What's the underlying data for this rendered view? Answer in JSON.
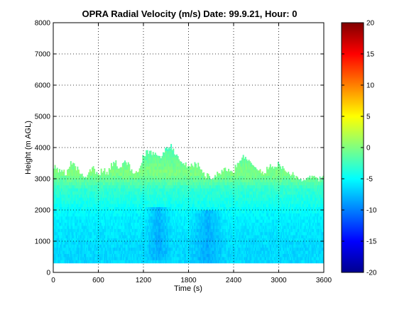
{
  "chart_data": {
    "type": "heatmap",
    "title": "OPRA Radial Velocity (m/s)  Date: 99.9.21, Hour: 0",
    "xlabel": "Time (s)",
    "ylabel": "Height (m AGL)",
    "xlim": [
      0,
      3600
    ],
    "ylim": [
      0,
      8000
    ],
    "x_ticks": [
      "0",
      "600",
      "1200",
      "1800",
      "2400",
      "3000",
      "3600"
    ],
    "y_ticks": [
      "0",
      "1000",
      "2000",
      "3000",
      "4000",
      "5000",
      "6000",
      "7000",
      "8000"
    ],
    "grid": true,
    "colormap": "jet",
    "colorbar": {
      "range": [
        -20,
        20
      ],
      "ticks": [
        "20",
        "15",
        "10",
        "5",
        "0",
        "-5",
        "-10",
        "-15",
        "-20"
      ]
    },
    "data_bottom_height": 300,
    "top_height_profile": {
      "time": [
        0,
        60,
        120,
        180,
        240,
        300,
        360,
        420,
        480,
        540,
        600,
        660,
        720,
        780,
        840,
        900,
        960,
        1020,
        1080,
        1140,
        1200,
        1260,
        1320,
        1380,
        1440,
        1500,
        1560,
        1620,
        1680,
        1740,
        1800,
        1860,
        1920,
        1980,
        2040,
        2100,
        2160,
        2220,
        2280,
        2340,
        2400,
        2460,
        2520,
        2580,
        2640,
        2700,
        2760,
        2820,
        2880,
        2940,
        3000,
        3060,
        3120,
        3180,
        3240,
        3300,
        3360,
        3420,
        3480,
        3540,
        3600
      ],
      "height": [
        3450,
        3250,
        3300,
        3150,
        3550,
        3350,
        3200,
        3000,
        3250,
        3350,
        3100,
        3300,
        3150,
        3450,
        3500,
        3300,
        3600,
        3350,
        3150,
        3300,
        3750,
        3900,
        3850,
        3700,
        3750,
        3950,
        4050,
        3800,
        3550,
        3450,
        3450,
        3450,
        3450,
        3200,
        3100,
        3000,
        3150,
        3200,
        3400,
        3200,
        3250,
        3550,
        3750,
        3600,
        3400,
        3300,
        3200,
        3250,
        3400,
        3350,
        3500,
        3350,
        3200,
        3150,
        3000,
        3000,
        3000,
        3000,
        3000,
        3000,
        3000
      ]
    },
    "velocity_by_height": {
      "height": [
        300,
        800,
        1300,
        1800,
        2300,
        2700,
        2900,
        3200,
        3600,
        4000
      ],
      "velocity": [
        -6.5,
        -6.5,
        -6.0,
        -5.5,
        -4.0,
        -3.0,
        -1.5,
        0.0,
        -1.0,
        -2.0
      ]
    },
    "annotations": [
      {
        "label": "strong negative streak",
        "time_start": 1200,
        "time_end": 1600,
        "height_start": 400,
        "height_end": 2000,
        "velocity": -9
      },
      {
        "label": "strong negative streak",
        "time_start": 1800,
        "time_end": 2300,
        "height_start": 300,
        "height_end": 1900,
        "velocity": -9
      }
    ]
  }
}
